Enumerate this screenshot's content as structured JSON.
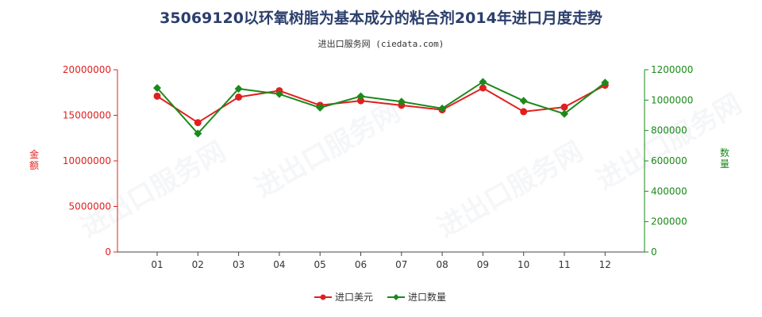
{
  "title": "35069120以环氧树脂为基本成分的粘合剂2014年进口月度走势",
  "subtitle": "进出口服务网 (ciedata.com)",
  "watermark": "进出口服务网",
  "chart_data": {
    "type": "line",
    "categories": [
      "01",
      "02",
      "03",
      "04",
      "05",
      "06",
      "07",
      "08",
      "09",
      "10",
      "11",
      "12"
    ],
    "left_axis": {
      "label": "金额",
      "ylim": [
        0,
        20000000
      ],
      "ticks": [
        "0",
        "5000000",
        "10000000",
        "15000000",
        "20000000"
      ],
      "color": "#e02020"
    },
    "right_axis": {
      "label": "数量",
      "ylim": [
        0,
        1200000
      ],
      "ticks": [
        "0",
        "200000",
        "400000",
        "600000",
        "800000",
        "1000000",
        "1200000"
      ],
      "color": "#1a8a1a"
    },
    "series": [
      {
        "name": "进口美元",
        "axis": "left",
        "color": "#e02020",
        "values": [
          17100000,
          14200000,
          17000000,
          17700000,
          16100000,
          16600000,
          16100000,
          15600000,
          18000000,
          15400000,
          15900000,
          18300000
        ]
      },
      {
        "name": "进口数量",
        "axis": "right",
        "color": "#1a8a1a",
        "values": [
          1080000,
          780000,
          1075000,
          1040000,
          950000,
          1025000,
          990000,
          945000,
          1120000,
          995000,
          910000,
          1115000
        ]
      }
    ],
    "grid": false,
    "legend_position": "bottom-center"
  }
}
